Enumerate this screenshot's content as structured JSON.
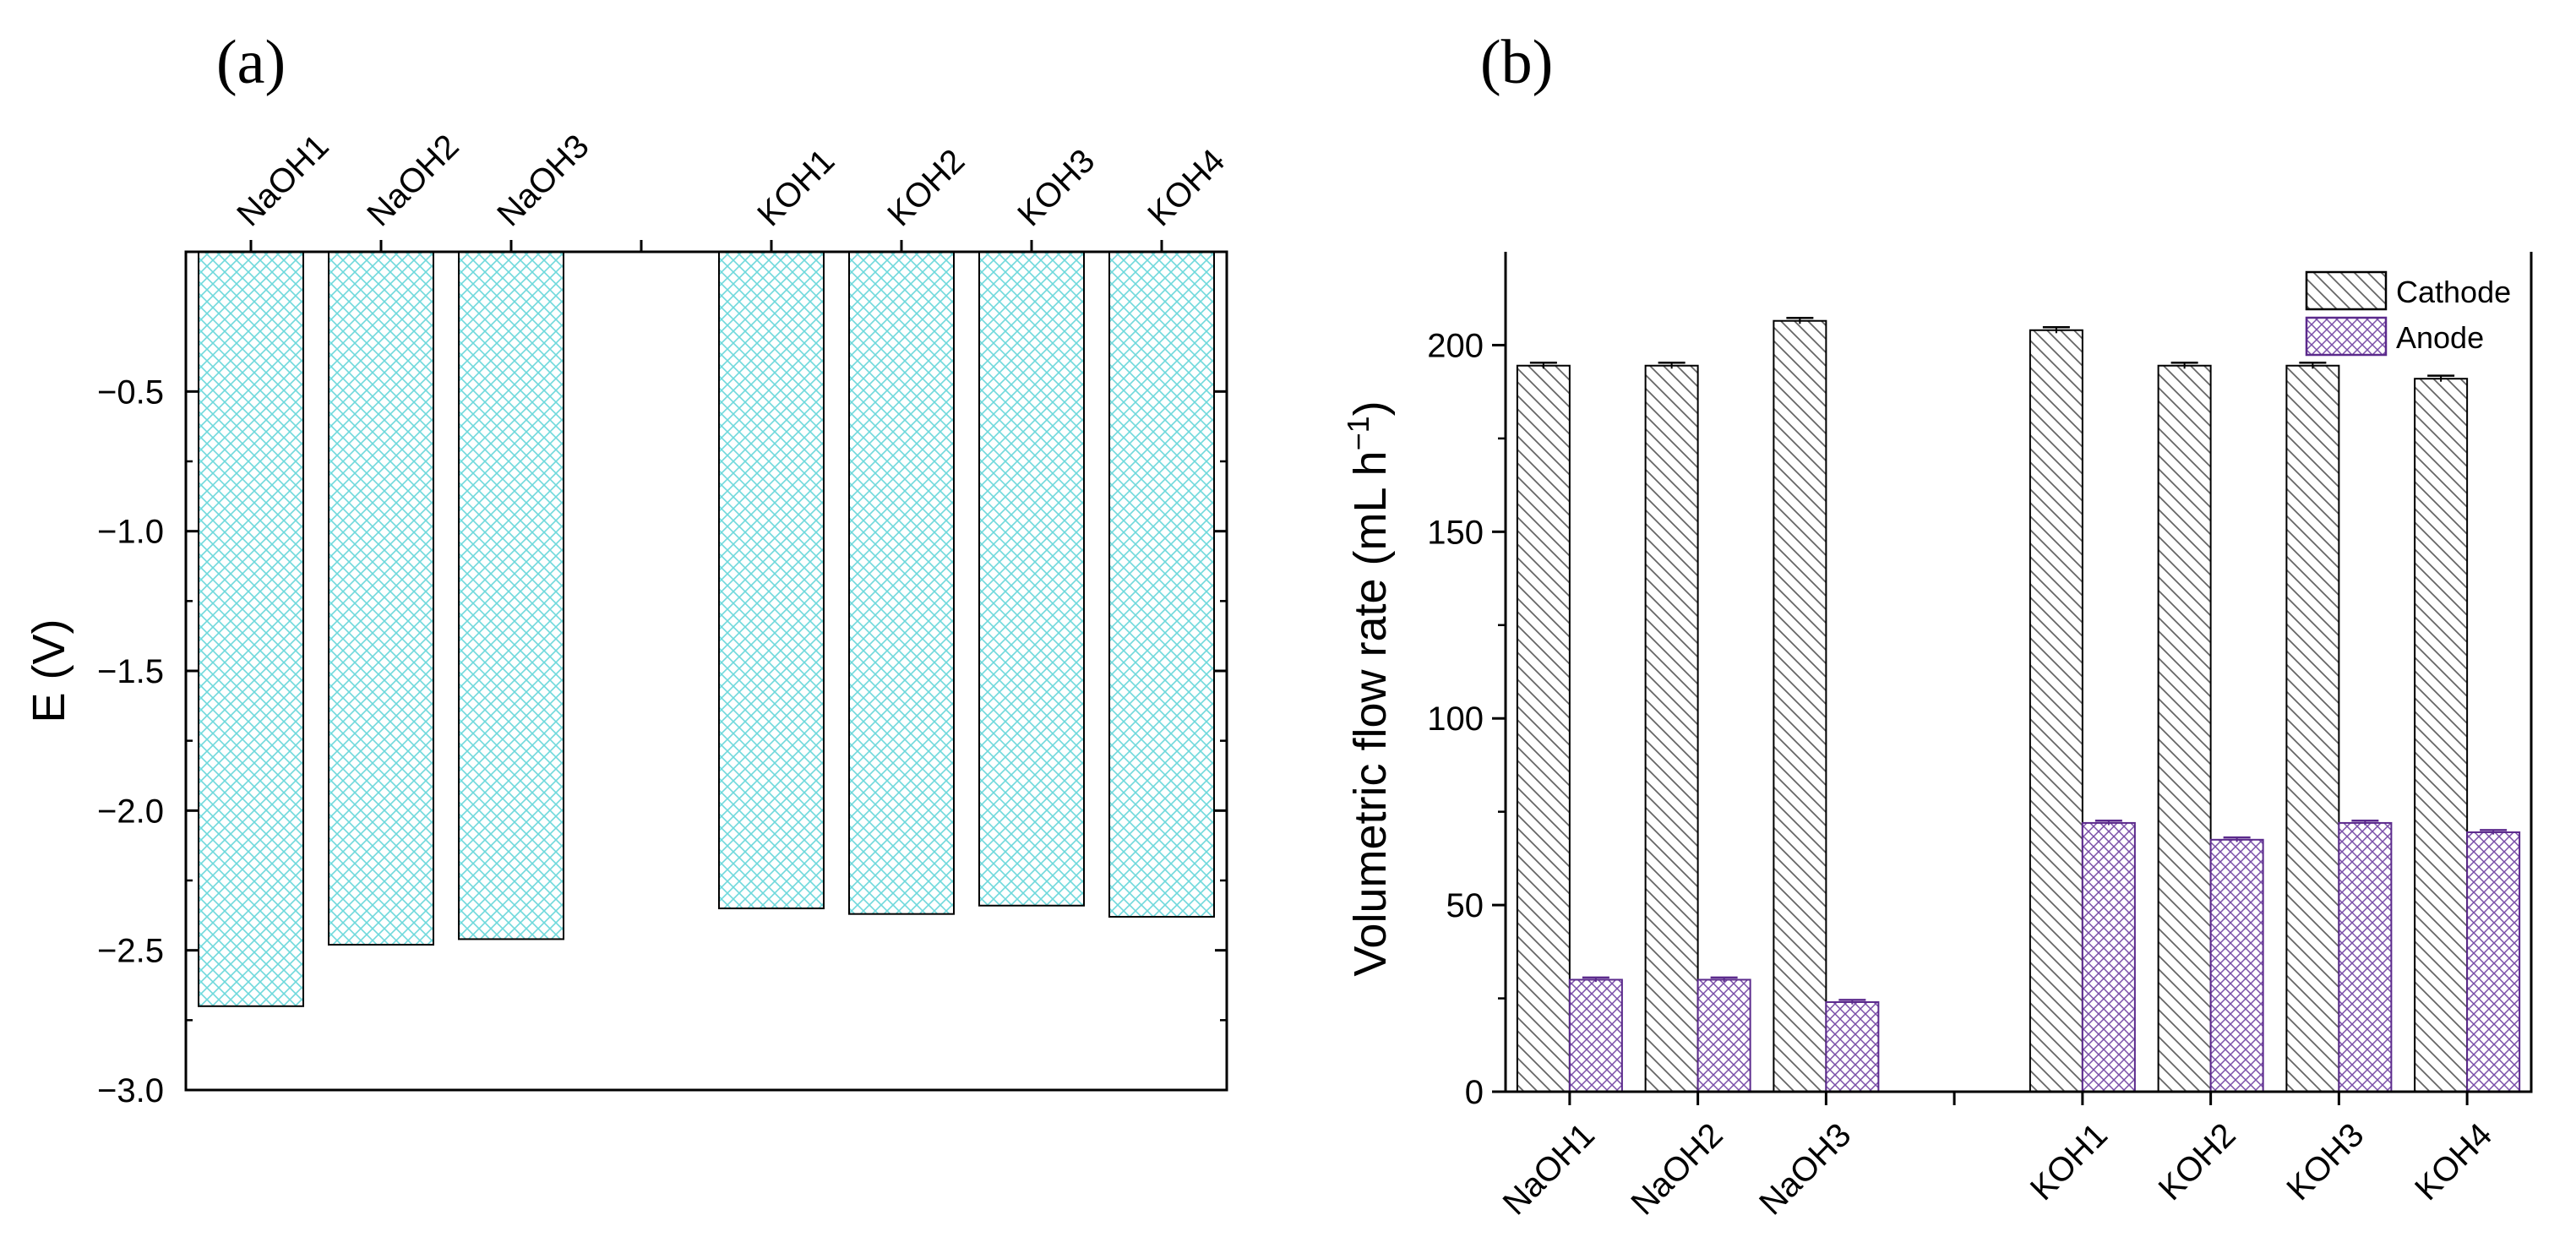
{
  "chart_data": [
    {
      "panel_label": "(a)",
      "type": "bar",
      "categories": [
        "NaOH1",
        "NaOH2",
        "NaOH3",
        "KOH1",
        "KOH2",
        "KOH3",
        "KOH4"
      ],
      "values": [
        -2.7,
        -2.48,
        -2.46,
        -2.35,
        -2.37,
        -2.34,
        -2.38
      ],
      "ylabel": "E (V)",
      "ylim": [
        -3.0,
        0.0
      ],
      "yticks": [
        -3.0,
        -2.5,
        -2.0,
        -1.5,
        -1.0,
        -0.5
      ],
      "ytick_labels": [
        "−3.0",
        "−2.5",
        "−2.0",
        "−1.5",
        "−1.0",
        "−0.5"
      ],
      "category_axis": "top",
      "bar_color": "#8fe6e8",
      "pattern": "crosshatch"
    },
    {
      "panel_label": "(b)",
      "type": "bar",
      "categories": [
        "NaOH1",
        "NaOH2",
        "NaOH3",
        "KOH1",
        "KOH2",
        "KOH3",
        "KOH4"
      ],
      "series": [
        {
          "name": "Cathode",
          "values": [
            194.5,
            194.5,
            206.5,
            204.0,
            194.5,
            194.5,
            191.0
          ],
          "errors": [
            0.8,
            0.8,
            0.8,
            0.8,
            0.8,
            0.8,
            0.8
          ],
          "color": "#555555",
          "pattern": "diagonal"
        },
        {
          "name": "Anode",
          "values": [
            30.0,
            30.0,
            24.0,
            72.0,
            67.5,
            72.0,
            69.5
          ],
          "errors": [
            0.6,
            0.6,
            0.6,
            0.6,
            0.6,
            0.6,
            0.6
          ],
          "color": "#5b2a8c",
          "pattern": "crosshatch"
        }
      ],
      "ylabel": "Volumetric flow rate (mL h",
      "ylabel_sup": "−1",
      "ylabel_close": ")",
      "ylim": [
        0,
        225
      ],
      "yticks": [
        0,
        50,
        100,
        150,
        200
      ],
      "ytick_labels": [
        "0",
        "50",
        "100",
        "150",
        "200"
      ],
      "legend_position": "top-right"
    }
  ]
}
